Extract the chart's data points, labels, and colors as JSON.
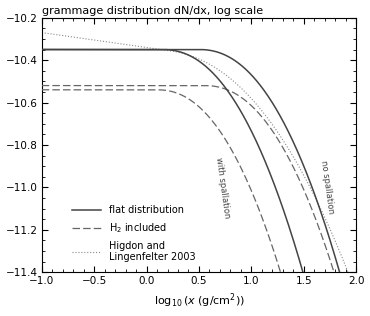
{
  "title": "grammage distribution dN/dx, log scale",
  "xlabel": "log$_{10}$(x (g/cm$^2$))",
  "xlim": [
    -1,
    2
  ],
  "ylim": [
    -11.4,
    -10.2
  ],
  "xticks": [
    -1,
    -0.5,
    0,
    0.5,
    1,
    1.5,
    2
  ],
  "yticks": [
    -10.2,
    -10.4,
    -10.6,
    -10.8,
    -11,
    -11.2,
    -11.4
  ],
  "legend": {
    "flat_label": "flat distribution",
    "h2_label": "H$_2$ included",
    "higdon_label": "Higdon and\nLingenfelter 2003"
  },
  "curve_params": {
    "flat_no_spall": {
      "y0": -10.35,
      "x_start_drop": 0.5,
      "scale": 0.55,
      "power": 2.2
    },
    "flat_with_spall": {
      "y0": -10.35,
      "x_start_drop": 0.15,
      "scale": 0.55,
      "power": 2.2
    },
    "h2_no_spall": {
      "y0": -10.52,
      "x_start_drop": 0.55,
      "scale": 0.55,
      "power": 2.2
    },
    "h2_with_spall": {
      "y0": -10.54,
      "x_start_drop": 0.1,
      "scale": 0.6,
      "power": 2.2
    },
    "higdon": {
      "y0": -10.27,
      "slope": 0.07,
      "x_drop": 0.2,
      "drop_scale": 0.28,
      "drop_power": 2.2
    }
  }
}
